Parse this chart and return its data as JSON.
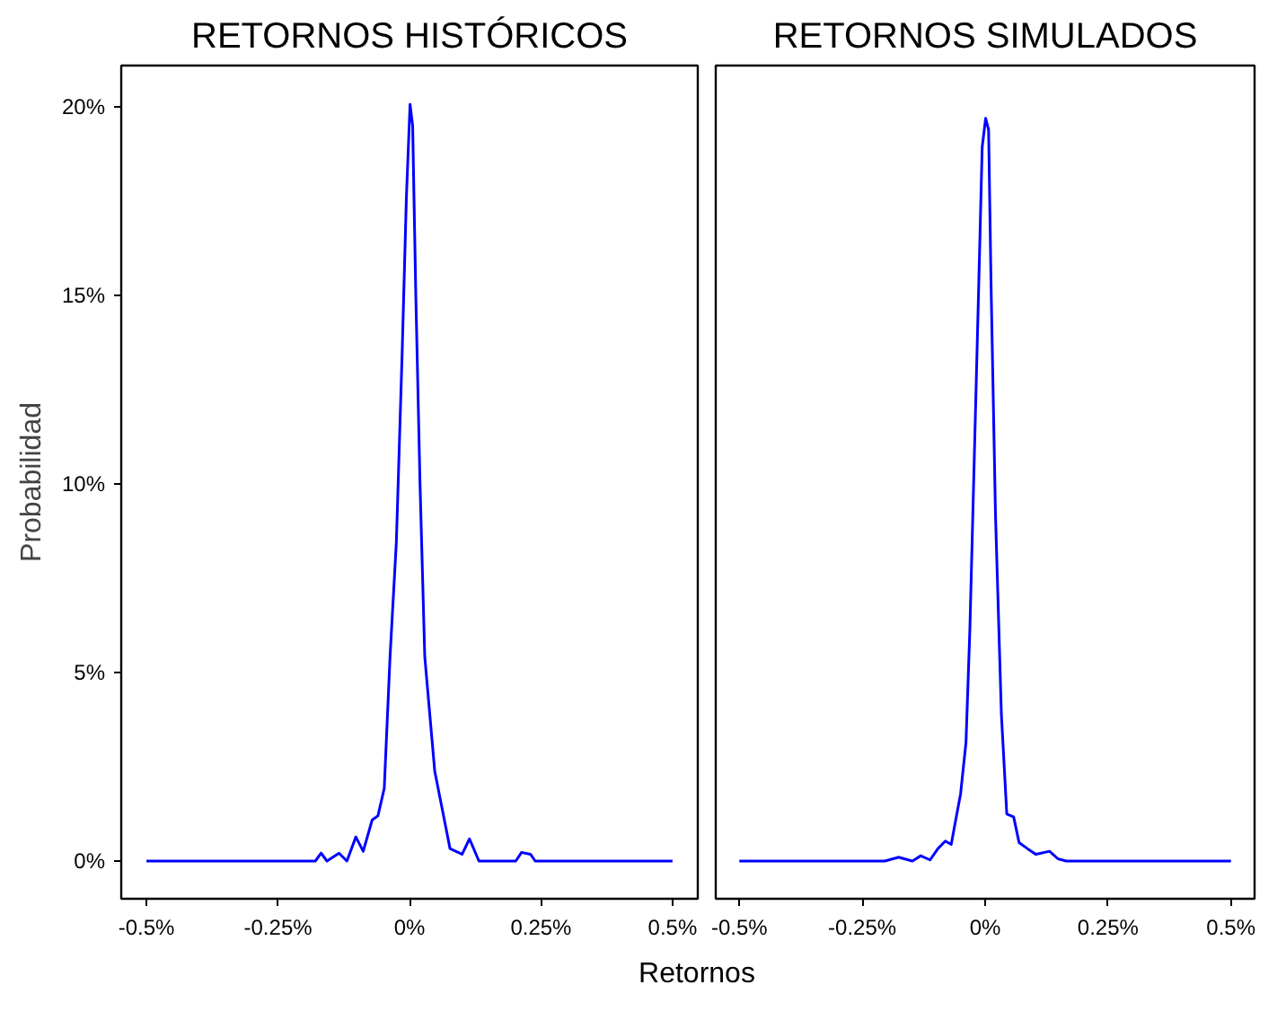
{
  "chart_data": [
    {
      "type": "line",
      "title": "RETORNOS HISTÓRICOS",
      "xlabel": "Retornos",
      "ylabel": "Probabilidad",
      "x": [
        -0.5,
        -0.179,
        -0.168,
        -0.157,
        -0.134,
        -0.119,
        -0.102,
        -0.088,
        -0.071,
        -0.06,
        -0.048,
        -0.037,
        -0.025,
        -0.014,
        -0.006,
        0.001,
        0.006,
        0.012,
        0.02,
        0.029,
        0.048,
        0.063,
        0.077,
        0.1,
        0.114,
        0.132,
        0.202,
        0.213,
        0.23,
        0.239,
        0.5
      ],
      "series": [
        {
          "color": "#0000ff",
          "values": [
            0,
            0,
            0.21,
            0,
            0.21,
            0,
            0.64,
            0.26,
            1.09,
            1.2,
            1.93,
            5.42,
            8.46,
            13.47,
            17.57,
            20.07,
            19.5,
            14.99,
            10.0,
            5.42,
            2.38,
            1.32,
            0.33,
            0.18,
            0.59,
            0,
            0,
            0.23,
            0.18,
            0,
            0
          ]
        }
      ],
      "xlim": [
        -0.548,
        0.548
      ],
      "ylim": [
        -1.0,
        21.1
      ],
      "xticks": [
        {
          "value": -0.5,
          "label": "-0.5%"
        },
        {
          "value": -0.25,
          "label": "-0.25%"
        },
        {
          "value": 0,
          "label": "0%"
        },
        {
          "value": 0.25,
          "label": "0.25%"
        },
        {
          "value": 0.5,
          "label": "0.5%"
        }
      ],
      "yticks": [
        {
          "value": 0,
          "label": "0%"
        },
        {
          "value": 5,
          "label": "5%"
        },
        {
          "value": 10,
          "label": "10%"
        },
        {
          "value": 15,
          "label": "15%"
        },
        {
          "value": 20,
          "label": "20%"
        }
      ],
      "grid": false
    },
    {
      "type": "line",
      "title": "RETORNOS SIMULADOS",
      "x": [
        -0.5,
        -0.204,
        -0.176,
        -0.148,
        -0.131,
        -0.112,
        -0.096,
        -0.081,
        -0.069,
        -0.062,
        -0.05,
        -0.039,
        -0.031,
        -0.022,
        -0.013,
        -0.006,
        0.001,
        0.007,
        0.012,
        0.021,
        0.033,
        0.044,
        0.058,
        0.069,
        0.086,
        0.103,
        0.131,
        0.148,
        0.165,
        0.5
      ],
      "series": [
        {
          "color": "#0000ff",
          "values": [
            0,
            0,
            0.1,
            0,
            0.14,
            0.03,
            0.33,
            0.53,
            0.44,
            0.94,
            1.78,
            3.14,
            6.18,
            10.74,
            15.3,
            18.94,
            19.7,
            19.4,
            15.3,
            9.2,
            3.9,
            1.25,
            1.17,
            0.49,
            0.33,
            0.18,
            0.26,
            0.06,
            0,
            0
          ]
        }
      ],
      "xlim": [
        -0.548,
        0.548
      ],
      "ylim": [
        -1.0,
        21.1
      ],
      "xticks": [
        {
          "value": -0.5,
          "label": "-0.5%"
        },
        {
          "value": -0.25,
          "label": "-0.25%"
        },
        {
          "value": 0,
          "label": "0%"
        },
        {
          "value": 0.25,
          "label": "0.25%"
        },
        {
          "value": 0.5,
          "label": "0.5%"
        }
      ],
      "tick_labels": "x",
      "grid": false
    }
  ]
}
